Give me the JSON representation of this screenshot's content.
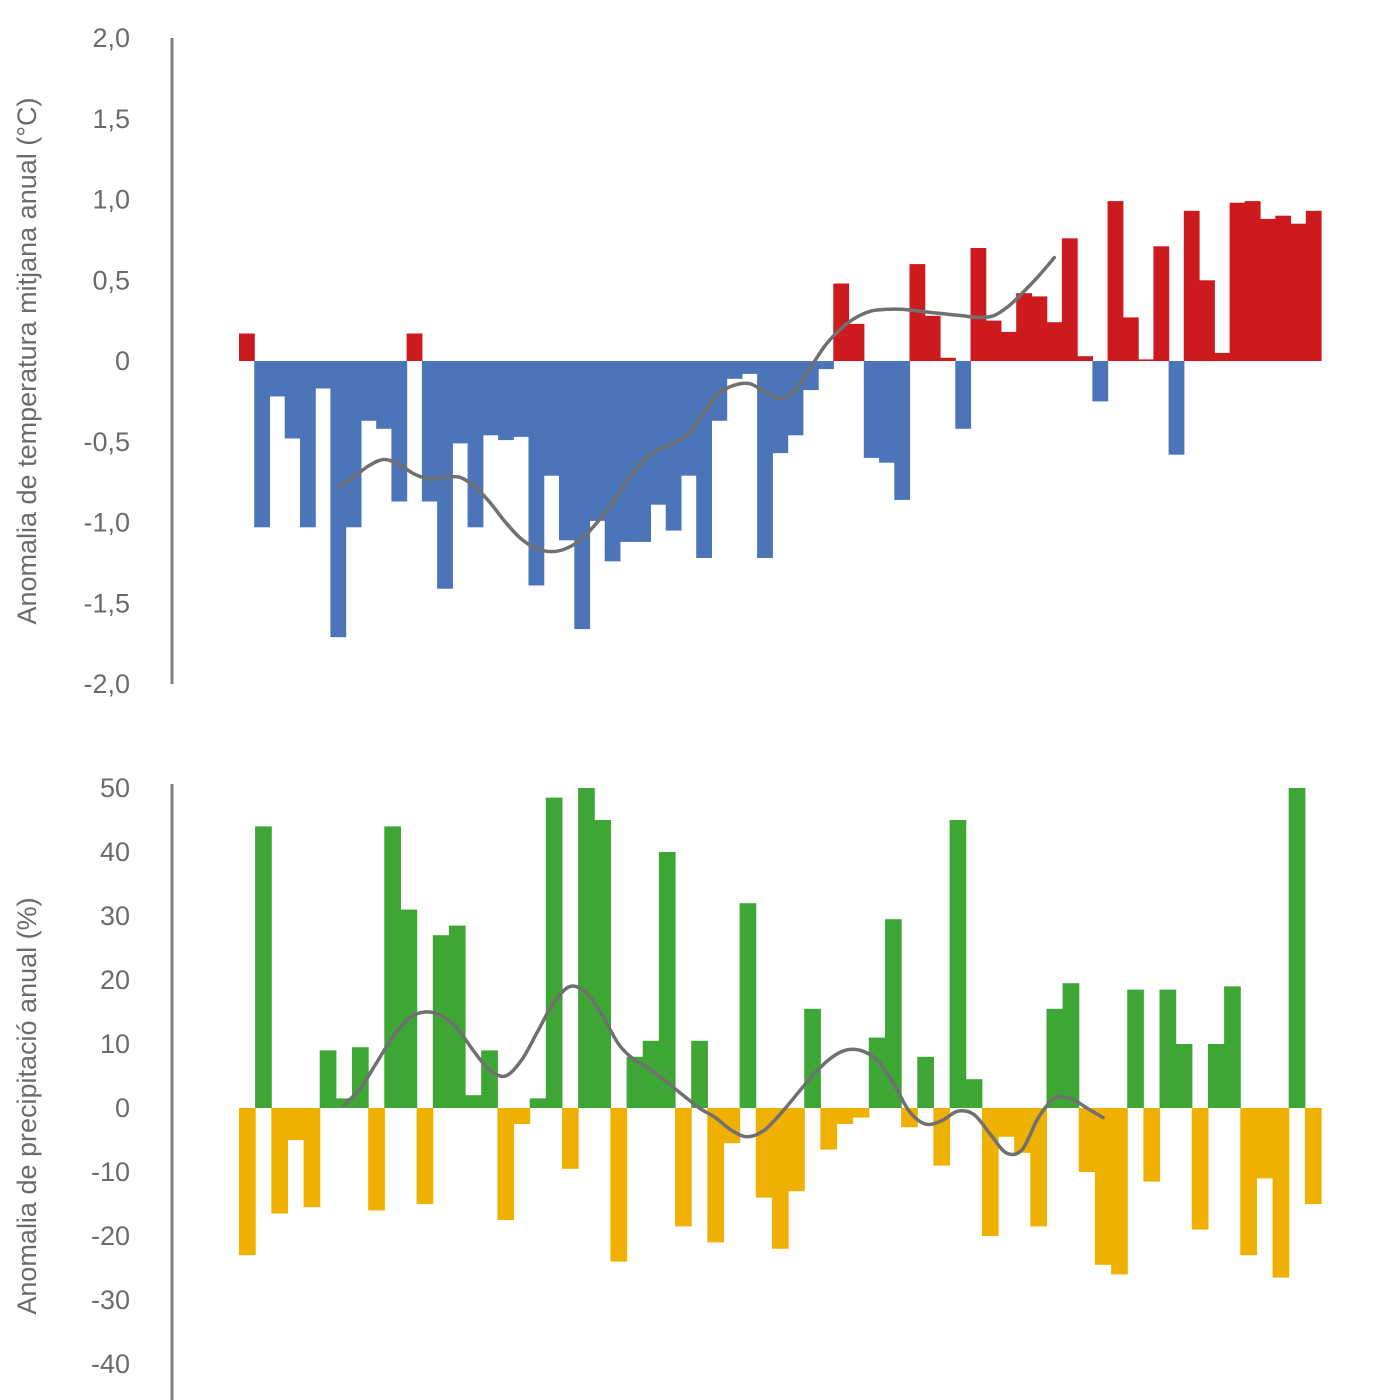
{
  "chart_data": [
    {
      "type": "bar",
      "title": "",
      "ylabel": "Anomalia de temperatura mitjana anual (°C)",
      "ylim": [
        -2.0,
        2.0
      ],
      "yticks": [
        "2,0",
        "1,5",
        "1,0",
        "0,5",
        "0",
        "-0,5",
        "-1,0",
        "-1,5",
        "-2,0"
      ],
      "ytick_values": [
        2.0,
        1.5,
        1.0,
        0.5,
        0,
        -0.5,
        -1.0,
        -1.5,
        -2.0
      ],
      "colors": {
        "positive": "#cc1a1e",
        "negative": "#4c74b8",
        "trend": "#707070"
      },
      "values": [
        0.17,
        -1.03,
        -0.22,
        -0.48,
        -1.03,
        -0.17,
        -1.71,
        -1.03,
        -0.37,
        -0.42,
        -0.87,
        0.17,
        -0.87,
        -1.41,
        -0.51,
        -1.03,
        -0.46,
        -0.49,
        -0.47,
        -1.39,
        -0.71,
        -1.11,
        -1.66,
        -0.99,
        -1.24,
        -1.12,
        -1.12,
        -0.89,
        -1.05,
        -0.71,
        -1.22,
        -0.37,
        -0.11,
        -0.08,
        -1.22,
        -0.57,
        -0.46,
        -0.18,
        -0.05,
        0.48,
        0.23,
        -0.6,
        -0.63,
        -0.86,
        0.6,
        0.28,
        0.02,
        -0.42,
        0.7,
        0.25,
        0.18,
        0.42,
        0.4,
        0.24,
        0.76,
        0.03,
        -0.25,
        0.99,
        0.27,
        0.01,
        0.71,
        -0.58,
        0.93,
        0.5,
        0.05,
        0.98,
        0.99,
        0.88,
        0.9,
        0.85,
        0.93
      ],
      "trend": [
        -0.78,
        -0.72,
        -0.65,
        -0.61,
        -0.64,
        -0.7,
        -0.73,
        -0.72,
        -0.72,
        -0.78,
        -0.88,
        -1.0,
        -1.1,
        -1.16,
        -1.18,
        -1.16,
        -1.1,
        -1.0,
        -0.88,
        -0.74,
        -0.62,
        -0.55,
        -0.51,
        -0.45,
        -0.32,
        -0.2,
        -0.15,
        -0.14,
        -0.19,
        -0.23,
        -0.18,
        -0.04,
        0.1,
        0.2,
        0.27,
        0.31,
        0.32,
        0.32,
        0.31,
        0.3,
        0.29,
        0.28,
        0.27,
        0.28,
        0.34,
        0.43,
        0.53,
        0.64
      ],
      "trend_start_index": 6
    },
    {
      "type": "bar",
      "title": "",
      "ylabel": "Anomalia de precipitació anual (%)",
      "ylim": [
        -40,
        50
      ],
      "yticks": [
        "50",
        "40",
        "30",
        "20",
        "10",
        "0",
        "-10",
        "-20",
        "-30",
        "-40"
      ],
      "ytick_values": [
        50,
        40,
        30,
        20,
        10,
        0,
        -10,
        -20,
        -30,
        -40
      ],
      "colors": {
        "positive": "#3ea635",
        "negative": "#f0b000",
        "trend": "#707070"
      },
      "values": [
        -23,
        44,
        -16.5,
        -5,
        -15.5,
        9,
        1.5,
        9.5,
        -16,
        44,
        31,
        -15,
        27,
        28.5,
        2,
        9,
        -17.5,
        -2.5,
        1.5,
        48.5,
        -9.5,
        50,
        45,
        -24,
        8,
        10.5,
        40,
        -18.5,
        10.5,
        -21,
        -5.5,
        32,
        -14,
        -22,
        -13,
        15.5,
        -6.5,
        -2.5,
        -1.5,
        11,
        29.5,
        -3,
        8,
        -9,
        45,
        4.5,
        -20,
        -4.5,
        -7,
        -18.5,
        15.5,
        19.5,
        -10,
        -24.5,
        -26,
        18.5,
        -11.5,
        18.5,
        10,
        -19,
        10,
        19,
        -23,
        -11,
        -26.5,
        50,
        -15
      ],
      "trend": [
        0.5,
        3,
        7,
        11,
        14,
        15,
        14.5,
        12.5,
        9,
        6,
        5,
        7.5,
        12,
        16.5,
        19,
        18,
        14.5,
        10,
        7.5,
        6,
        4,
        2,
        0,
        -1.5,
        -3.5,
        -4.5,
        -3.5,
        -1,
        2,
        5,
        7.5,
        9,
        9,
        7.5,
        4,
        -0.5,
        -2.5,
        -2,
        -0.5,
        -1,
        -4,
        -7,
        -6.5,
        -1.5,
        1.5,
        1.5,
        0,
        -1.5
      ],
      "trend_start_index": 6
    }
  ]
}
